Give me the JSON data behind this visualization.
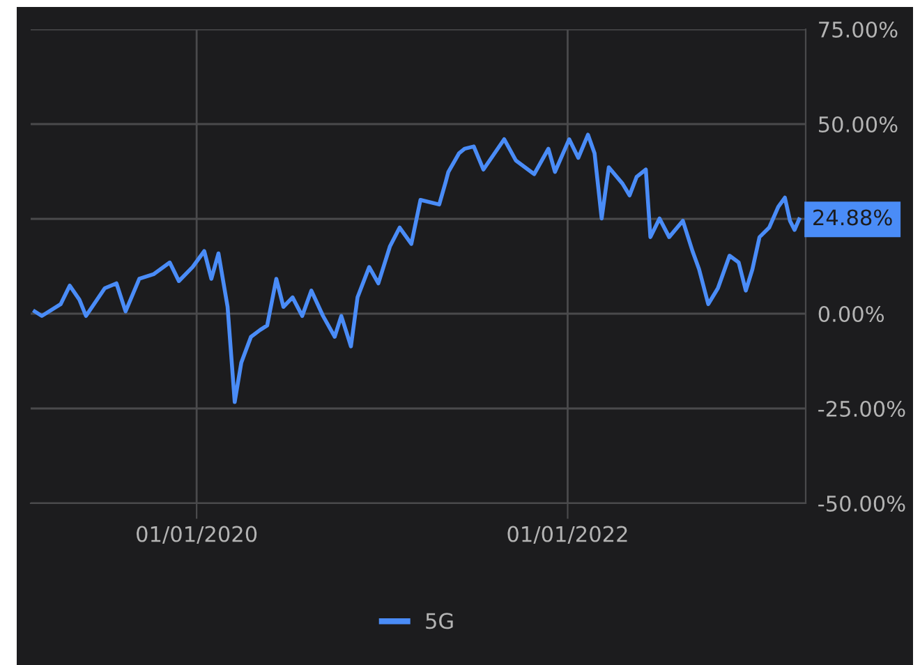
{
  "chart_data": {
    "type": "line",
    "x": [
      "2019-02-16",
      "2019-03-02",
      "2019-04-08",
      "2019-04-26",
      "2019-05-15",
      "2019-05-28",
      "2019-07-04",
      "2019-07-27",
      "2019-08-14",
      "2019-09-10",
      "2019-10-08",
      "2019-11-09",
      "2019-11-27",
      "2019-12-24",
      "2020-01-16",
      "2020-01-30",
      "2020-02-13",
      "2020-03-02",
      "2020-03-16",
      "2020-03-29",
      "2020-04-17",
      "2020-05-05",
      "2020-05-19",
      "2020-06-06",
      "2020-06-20",
      "2020-07-08",
      "2020-07-27",
      "2020-08-14",
      "2020-09-06",
      "2020-09-29",
      "2020-10-12",
      "2020-10-31",
      "2020-11-13",
      "2020-12-06",
      "2020-12-24",
      "2021-01-16",
      "2021-02-04",
      "2021-02-27",
      "2021-03-17",
      "2021-04-23",
      "2021-05-06",
      "2021-05-11",
      "2021-06-01",
      "2021-06-12",
      "2021-06-30",
      "2021-07-19",
      "2021-08-29",
      "2021-09-21",
      "2021-10-27",
      "2021-11-24",
      "2021-12-07",
      "2022-01-04",
      "2022-01-22",
      "2022-02-10",
      "2022-02-23",
      "2022-03-09",
      "2022-03-23",
      "2022-04-19",
      "2022-05-03",
      "2022-05-17",
      "2022-06-04",
      "2022-06-13",
      "2022-07-01",
      "2022-07-20",
      "2022-08-16",
      "2022-09-04",
      "2022-09-17",
      "2022-10-05",
      "2022-10-24",
      "2022-11-16",
      "2022-12-04",
      "2022-12-18",
      "2022-12-31",
      "2023-01-14",
      "2023-02-02",
      "2023-02-20",
      "2023-03-05",
      "2023-03-15",
      "2023-03-24",
      "2023-04-02"
    ],
    "series": [
      {
        "name": "5G",
        "color": "#4a8cf7",
        "values": [
          0.6,
          -0.6,
          2.5,
          7.4,
          3.7,
          -0.6,
          6.7,
          8.0,
          0.6,
          9.2,
          10.4,
          13.5,
          8.6,
          12.3,
          16.5,
          9.2,
          15.9,
          1.8,
          -23.3,
          -12.9,
          -6.1,
          -4.3,
          -3.1,
          9.2,
          1.8,
          4.3,
          -0.6,
          6.1,
          -0.6,
          -6.1,
          -0.6,
          -8.6,
          4.3,
          12.3,
          8.0,
          17.8,
          22.7,
          18.4,
          30.0,
          28.8,
          34.9,
          37.4,
          42.3,
          43.5,
          44.1,
          38.0,
          46.0,
          40.4,
          36.8,
          43.5,
          37.4,
          46.0,
          41.1,
          47.2,
          42.3,
          25.1,
          38.6,
          34.3,
          31.2,
          36.1,
          38.0,
          20.2,
          25.1,
          20.2,
          24.5,
          16.5,
          11.7,
          2.5,
          6.7,
          15.3,
          13.5,
          6.1,
          11.7,
          20.2,
          22.7,
          28.2,
          30.6,
          24.5,
          22.1,
          24.88
        ]
      }
    ],
    "xlim": [
      "2019-02-08",
      "2023-04-15"
    ],
    "xticks": [
      {
        "value": "2020-01-01",
        "label": "01/01/2020"
      },
      {
        "value": "2022-01-01",
        "label": "01/01/2022"
      }
    ],
    "ylim": [
      -50,
      75
    ],
    "yticks": [
      {
        "value": -50,
        "label": "-50.00%"
      },
      {
        "value": -25,
        "label": "-25.00%"
      },
      {
        "value": 0,
        "label": "0.00%"
      },
      {
        "value": 25,
        "label": null
      },
      {
        "value": 50,
        "label": "50.00%"
      },
      {
        "value": 75,
        "label": "75.00%"
      }
    ],
    "annotations": [
      {
        "text": "24.88%",
        "x": "2023-04-02",
        "y": 24.88
      }
    ],
    "grid": true,
    "legend": "bottom",
    "marker": "none",
    "line_style": "solid"
  }
}
